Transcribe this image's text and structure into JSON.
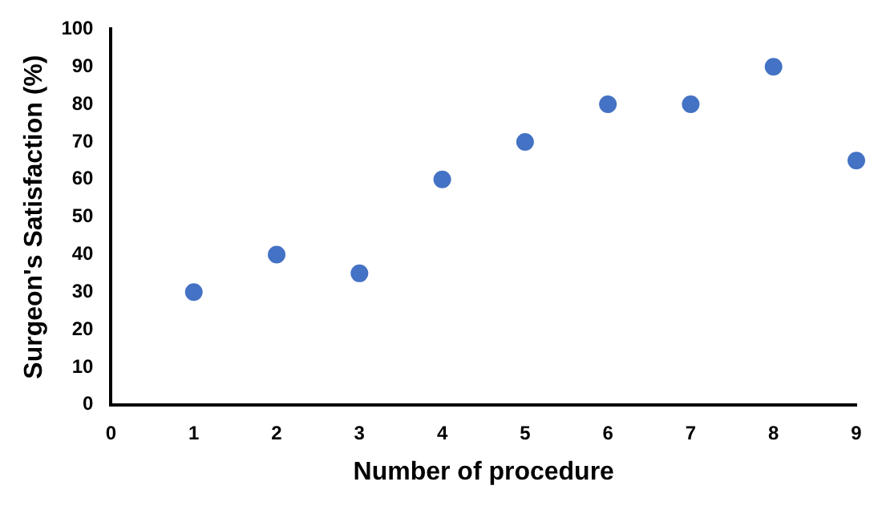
{
  "chart_data": {
    "type": "scatter",
    "xlabel": "Number of procedure",
    "ylabel": "Surgeon's Satisfaction (%)",
    "x": [
      1,
      2,
      3,
      4,
      5,
      6,
      7,
      8,
      9
    ],
    "values": [
      30,
      40,
      35,
      60,
      70,
      80,
      80,
      90,
      65
    ],
    "color": "#4472c4",
    "marker": "circle",
    "grid": false,
    "legend": false,
    "xlim": [
      0,
      9
    ],
    "xticks": [
      0,
      1,
      2,
      3,
      4,
      5,
      6,
      7,
      8,
      9
    ],
    "ylim": [
      0,
      100
    ],
    "yticks": [
      0,
      10,
      20,
      30,
      40,
      50,
      60,
      70,
      80,
      90,
      100
    ]
  }
}
